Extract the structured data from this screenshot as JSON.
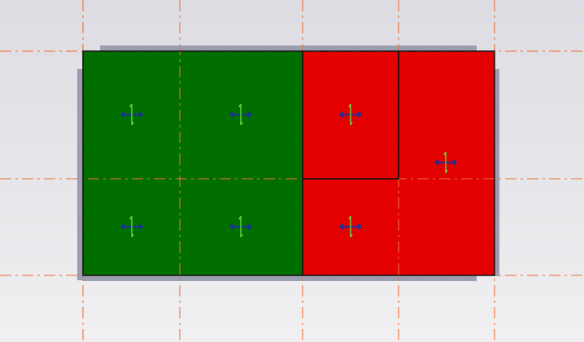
{
  "colors": {
    "background_top": "#dcdce2",
    "background_bottom": "#f0f0f2",
    "grid_line": "#f0703a",
    "shadow": "#9a9eb0",
    "group_a": "#006f00",
    "group_b": "#e20000",
    "outline": "#111111",
    "arrow_horizontal": "#1a2f9a",
    "arrow_vertical": "#5fd23a"
  },
  "panels": [
    {
      "group": "a",
      "label": ""
    },
    {
      "group": "a",
      "label": ""
    },
    {
      "group": "b",
      "label": ""
    },
    {
      "group": "b",
      "label": ""
    },
    {
      "group": "a",
      "label": ""
    },
    {
      "group": "a",
      "label": ""
    },
    {
      "group": "b",
      "label": ""
    }
  ]
}
